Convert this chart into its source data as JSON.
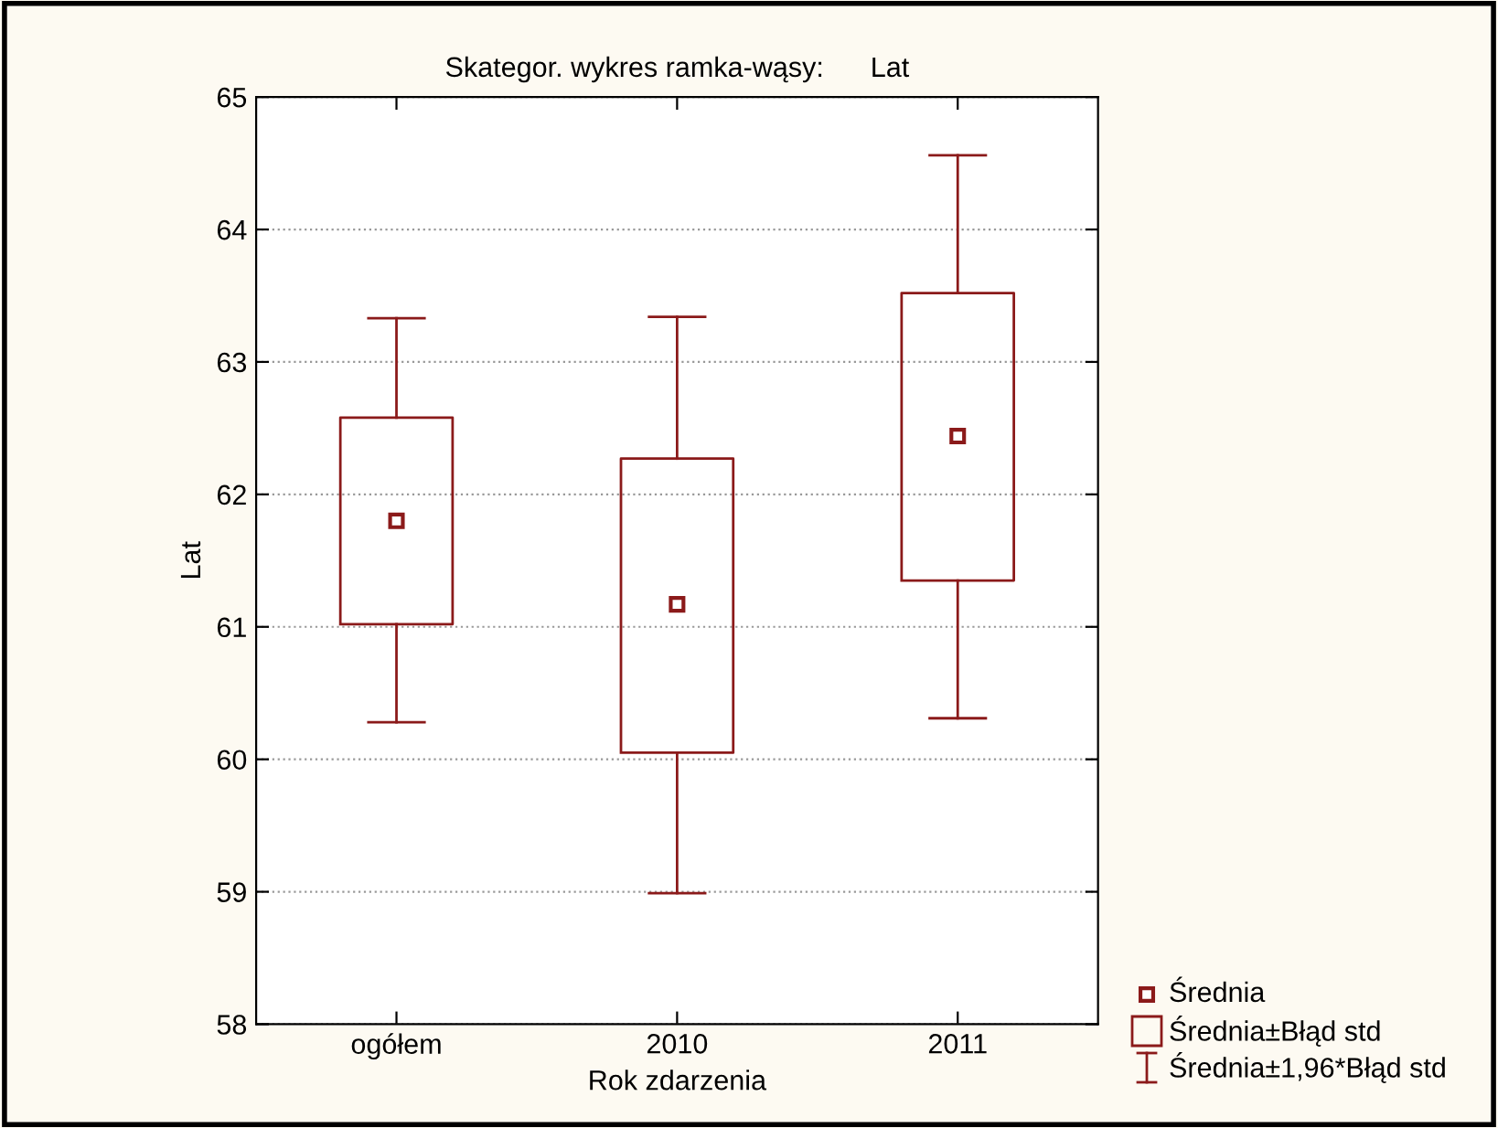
{
  "chart_data": {
    "type": "box",
    "title": "Skategor. wykres ramka-wąsy:      Lat",
    "xlabel": "Rok zdarzenia",
    "ylabel": "Lat",
    "categories": [
      "ogółem",
      "2010",
      "2011"
    ],
    "boxes": [
      {
        "low": 60.28,
        "q1": 61.02,
        "q3": 62.58,
        "high": 63.33,
        "mean": 61.8
      },
      {
        "low": 58.99,
        "q1": 60.05,
        "q3": 62.27,
        "high": 63.34,
        "mean": 61.17
      },
      {
        "low": 60.31,
        "q1": 61.35,
        "q3": 63.52,
        "high": 64.56,
        "mean": 62.44
      }
    ],
    "color": "#8b1a1a",
    "ylim": [
      58,
      65
    ],
    "yticks": [
      58,
      59,
      60,
      61,
      62,
      63,
      64,
      65
    ],
    "grid": "y",
    "annotations": [
      "Średnia",
      "Średnia±Błąd std",
      "Średnia±1,96*Błąd std"
    ],
    "marker": "square"
  }
}
